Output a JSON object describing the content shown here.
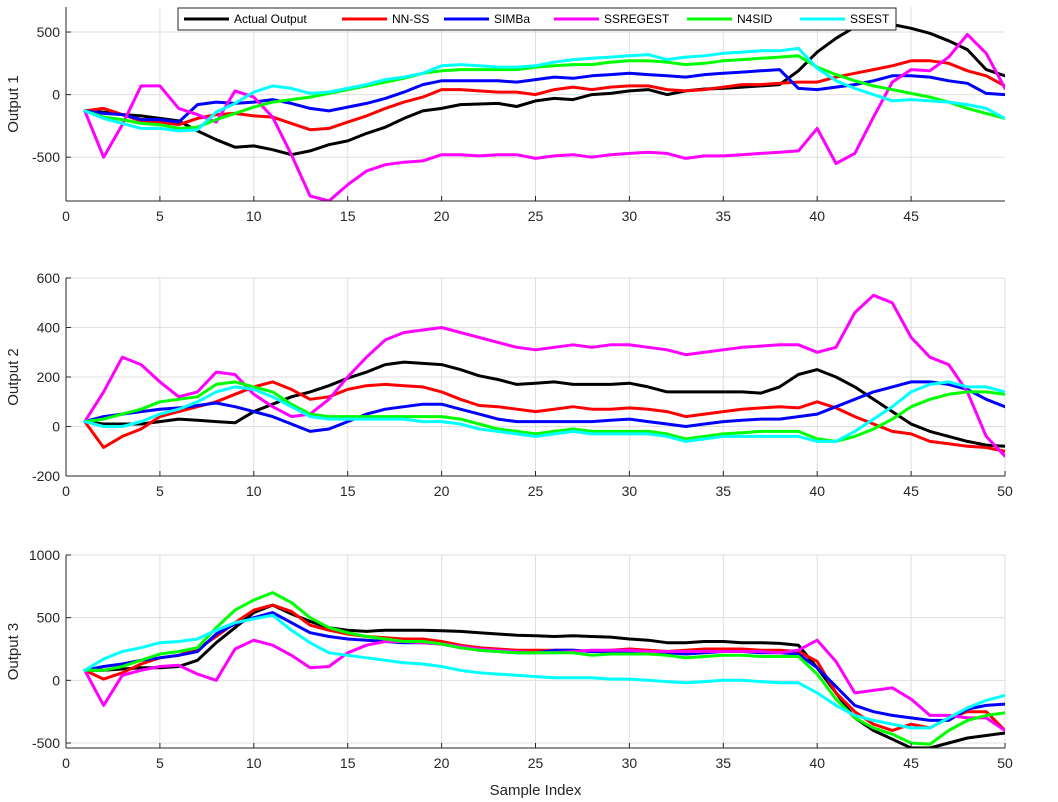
{
  "chart_data": [
    {
      "type": "line",
      "ylabel": "Output 1",
      "xlabel": "",
      "xlim": [
        0,
        50
      ],
      "ylim": [
        -850,
        700
      ],
      "xticks": [
        "0",
        "5",
        "10",
        "15",
        "20",
        "25",
        "30",
        "35",
        "40",
        "45"
      ],
      "yticks": [
        "500",
        "0",
        "-500"
      ],
      "grid": true,
      "legend_position": "top",
      "legend": [
        "Actual Output",
        "NN-SS",
        "SIMBa",
        "SSREGEST",
        "N4SID",
        "SSEST"
      ],
      "series": [
        {
          "name": "Actual Output",
          "color": "#000000",
          "values": [
            -130,
            -140,
            -160,
            -170,
            -190,
            -210,
            -290,
            -360,
            -420,
            -410,
            -440,
            -480,
            -450,
            -400,
            -370,
            -310,
            -260,
            -190,
            -130,
            -110,
            -80,
            -75,
            -70,
            -95,
            -50,
            -30,
            -40,
            0,
            10,
            30,
            40,
            0,
            30,
            45,
            50,
            60,
            70,
            80,
            190,
            340,
            450,
            540,
            580,
            560,
            530,
            490,
            430,
            360,
            200,
            150
          ]
        },
        {
          "name": "NN-SS",
          "color": "#ff0000",
          "values": [
            -130,
            -110,
            -160,
            -210,
            -220,
            -240,
            -190,
            -160,
            -150,
            -170,
            -180,
            -230,
            -280,
            -270,
            -220,
            -170,
            -110,
            -60,
            -20,
            40,
            40,
            30,
            20,
            20,
            0,
            40,
            60,
            40,
            60,
            70,
            70,
            40,
            30,
            40,
            60,
            80,
            80,
            90,
            100,
            100,
            140,
            170,
            200,
            230,
            270,
            270,
            250,
            190,
            150,
            70
          ]
        },
        {
          "name": "SIMBa",
          "color": "#0000ff",
          "values": [
            -130,
            -150,
            -160,
            -200,
            -200,
            -220,
            -80,
            -60,
            -70,
            -60,
            -40,
            -70,
            -110,
            -130,
            -100,
            -70,
            -30,
            20,
            80,
            110,
            110,
            110,
            110,
            100,
            120,
            140,
            130,
            150,
            160,
            170,
            160,
            150,
            140,
            160,
            170,
            180,
            190,
            200,
            50,
            40,
            60,
            80,
            110,
            150,
            150,
            140,
            110,
            90,
            10,
            0
          ]
        },
        {
          "name": "SSREGEST",
          "color": "#ff00ff",
          "values": [
            -130,
            -500,
            -240,
            70,
            70,
            -110,
            -160,
            -220,
            30,
            -20,
            -180,
            -480,
            -810,
            -850,
            -720,
            -610,
            -560,
            -540,
            -530,
            -480,
            -480,
            -490,
            -480,
            -480,
            -510,
            -490,
            -480,
            -500,
            -480,
            -470,
            -460,
            -470,
            -510,
            -490,
            -490,
            -480,
            -470,
            -460,
            -450,
            -270,
            -550,
            -470,
            -180,
            100,
            200,
            190,
            300,
            480,
            330,
            50
          ]
        },
        {
          "name": "N4SID",
          "color": "#00ff00",
          "values": [
            -130,
            -180,
            -200,
            -230,
            -240,
            -270,
            -260,
            -200,
            -150,
            -100,
            -60,
            -40,
            -20,
            10,
            40,
            70,
            100,
            130,
            170,
            190,
            200,
            200,
            200,
            200,
            220,
            230,
            240,
            240,
            260,
            270,
            270,
            260,
            240,
            250,
            270,
            280,
            290,
            300,
            310,
            220,
            160,
            110,
            70,
            40,
            10,
            -20,
            -60,
            -110,
            -150,
            -190
          ]
        },
        {
          "name": "SSEST",
          "color": "#00ffff",
          "values": [
            -130,
            -190,
            -230,
            -270,
            -270,
            -290,
            -280,
            -140,
            -70,
            20,
            70,
            50,
            10,
            20,
            50,
            80,
            120,
            140,
            170,
            230,
            240,
            230,
            220,
            220,
            230,
            260,
            280,
            290,
            300,
            310,
            320,
            280,
            300,
            310,
            330,
            340,
            350,
            350,
            370,
            210,
            110,
            50,
            0,
            -50,
            -40,
            -50,
            -60,
            -80,
            -110,
            -190
          ]
        }
      ]
    },
    {
      "type": "line",
      "ylabel": "Output 2",
      "xlabel": "",
      "xlim": [
        0,
        50
      ],
      "ylim": [
        -200,
        600
      ],
      "xticks": [
        "0",
        "5",
        "10",
        "15",
        "20",
        "25",
        "30",
        "35",
        "40",
        "45",
        "50"
      ],
      "yticks": [
        "600",
        "400",
        "200",
        "0",
        "-200"
      ],
      "grid": true,
      "series": [
        {
          "name": "Actual Output",
          "color": "#000000",
          "values": [
            20,
            10,
            10,
            10,
            20,
            30,
            25,
            20,
            15,
            60,
            90,
            120,
            140,
            165,
            195,
            220,
            250,
            260,
            255,
            250,
            230,
            205,
            190,
            170,
            175,
            180,
            170,
            170,
            170,
            175,
            160,
            140,
            140,
            140,
            140,
            140,
            135,
            160,
            210,
            230,
            200,
            160,
            110,
            60,
            10,
            -20,
            -40,
            -60,
            -75,
            -80
          ]
        },
        {
          "name": "NN-SS",
          "color": "#ff0000",
          "values": [
            20,
            -85,
            -40,
            -10,
            40,
            60,
            80,
            100,
            130,
            160,
            180,
            150,
            110,
            120,
            150,
            165,
            170,
            165,
            160,
            140,
            110,
            85,
            80,
            70,
            60,
            70,
            80,
            70,
            70,
            75,
            70,
            60,
            40,
            50,
            60,
            70,
            75,
            80,
            75,
            100,
            75,
            40,
            10,
            -20,
            -30,
            -60,
            -70,
            -80,
            -85,
            -100
          ]
        },
        {
          "name": "SIMBa",
          "color": "#0000ff",
          "values": [
            20,
            40,
            50,
            60,
            70,
            75,
            85,
            95,
            80,
            60,
            40,
            10,
            -20,
            -10,
            20,
            50,
            70,
            80,
            90,
            90,
            70,
            50,
            30,
            20,
            20,
            20,
            20,
            20,
            25,
            30,
            20,
            10,
            0,
            10,
            20,
            25,
            30,
            30,
            40,
            50,
            80,
            110,
            140,
            160,
            180,
            180,
            170,
            150,
            110,
            80
          ]
        },
        {
          "name": "SSREGEST",
          "color": "#ff00ff",
          "values": [
            20,
            140,
            280,
            250,
            180,
            120,
            140,
            220,
            210,
            130,
            80,
            40,
            50,
            110,
            200,
            280,
            350,
            380,
            390,
            400,
            380,
            360,
            340,
            320,
            310,
            320,
            330,
            320,
            330,
            330,
            320,
            310,
            290,
            300,
            310,
            320,
            325,
            330,
            330,
            300,
            320,
            460,
            530,
            500,
            360,
            280,
            250,
            140,
            -40,
            -120
          ]
        },
        {
          "name": "N4SID",
          "color": "#00ff00",
          "values": [
            20,
            30,
            50,
            70,
            100,
            110,
            120,
            170,
            180,
            160,
            140,
            90,
            50,
            40,
            40,
            40,
            40,
            40,
            40,
            40,
            30,
            10,
            -10,
            -20,
            -30,
            -20,
            -10,
            -20,
            -20,
            -20,
            -20,
            -30,
            -50,
            -40,
            -30,
            -25,
            -20,
            -20,
            -20,
            -50,
            -60,
            -40,
            -10,
            30,
            80,
            110,
            130,
            140,
            140,
            130
          ]
        },
        {
          "name": "SSEST",
          "color": "#00ffff",
          "values": [
            20,
            0,
            0,
            20,
            50,
            70,
            100,
            140,
            160,
            150,
            120,
            80,
            40,
            30,
            30,
            30,
            30,
            30,
            20,
            20,
            10,
            -10,
            -20,
            -30,
            -40,
            -30,
            -20,
            -30,
            -30,
            -30,
            -30,
            -40,
            -60,
            -50,
            -40,
            -40,
            -40,
            -40,
            -40,
            -60,
            -60,
            -20,
            30,
            80,
            140,
            170,
            180,
            160,
            160,
            140
          ]
        }
      ]
    },
    {
      "type": "line",
      "ylabel": "Output 3",
      "xlabel": "Sample Index",
      "xlim": [
        0,
        50
      ],
      "ylim": [
        -540,
        1000
      ],
      "xticks": [
        "0",
        "5",
        "10",
        "15",
        "20",
        "25",
        "30",
        "35",
        "40",
        "45",
        "50"
      ],
      "yticks": [
        "1000",
        "500",
        "0",
        "-500"
      ],
      "grid": true,
      "series": [
        {
          "name": "Actual Output",
          "color": "#000000",
          "values": [
            80,
            80,
            90,
            100,
            100,
            110,
            160,
            300,
            420,
            540,
            600,
            530,
            470,
            420,
            400,
            390,
            400,
            400,
            400,
            395,
            390,
            380,
            370,
            360,
            355,
            350,
            355,
            350,
            345,
            330,
            320,
            300,
            300,
            310,
            310,
            300,
            300,
            295,
            280,
            100,
            -100,
            -300,
            -400,
            -470,
            -540,
            -540,
            -500,
            -460,
            -440,
            -420
          ]
        },
        {
          "name": "NN-SS",
          "color": "#ff0000",
          "values": [
            80,
            10,
            60,
            130,
            180,
            200,
            250,
            350,
            460,
            560,
            600,
            550,
            440,
            400,
            370,
            350,
            340,
            330,
            330,
            310,
            280,
            260,
            250,
            240,
            240,
            240,
            240,
            230,
            240,
            250,
            240,
            230,
            240,
            250,
            250,
            250,
            240,
            240,
            230,
            150,
            -100,
            -250,
            -350,
            -400,
            -350,
            -380,
            -300,
            -250,
            -250,
            -400
          ]
        },
        {
          "name": "SIMBa",
          "color": "#0000ff",
          "values": [
            80,
            110,
            130,
            160,
            180,
            200,
            230,
            370,
            450,
            500,
            540,
            460,
            380,
            350,
            330,
            320,
            310,
            300,
            300,
            290,
            260,
            240,
            230,
            220,
            220,
            240,
            240,
            230,
            230,
            230,
            230,
            220,
            210,
            220,
            230,
            230,
            220,
            220,
            210,
            100,
            -50,
            -200,
            -250,
            -280,
            -300,
            -320,
            -320,
            -230,
            -200,
            -190
          ]
        },
        {
          "name": "SSREGEST",
          "color": "#ff00ff",
          "values": [
            80,
            -200,
            40,
            80,
            110,
            120,
            50,
            0,
            250,
            320,
            280,
            200,
            100,
            110,
            220,
            280,
            310,
            310,
            300,
            290,
            270,
            250,
            240,
            230,
            220,
            220,
            230,
            240,
            240,
            240,
            230,
            230,
            230,
            230,
            230,
            230,
            230,
            220,
            240,
            320,
            150,
            -100,
            -80,
            -60,
            -150,
            -280,
            -280,
            -300,
            -300,
            -400
          ]
        },
        {
          "name": "N4SID",
          "color": "#00ff00",
          "values": [
            80,
            80,
            110,
            160,
            210,
            230,
            260,
            420,
            560,
            640,
            700,
            620,
            500,
            420,
            380,
            350,
            330,
            310,
            310,
            290,
            260,
            240,
            230,
            220,
            220,
            220,
            220,
            200,
            210,
            210,
            210,
            200,
            180,
            190,
            200,
            200,
            190,
            190,
            190,
            50,
            -150,
            -300,
            -380,
            -430,
            -500,
            -510,
            -400,
            -320,
            -280,
            -260
          ]
        },
        {
          "name": "SSEST",
          "color": "#00ffff",
          "values": [
            80,
            170,
            230,
            260,
            300,
            310,
            330,
            400,
            460,
            490,
            520,
            400,
            300,
            220,
            200,
            180,
            160,
            140,
            130,
            110,
            80,
            60,
            50,
            40,
            30,
            20,
            20,
            20,
            10,
            10,
            0,
            -10,
            -20,
            -10,
            0,
            0,
            -10,
            -20,
            -20,
            -100,
            -200,
            -280,
            -320,
            -350,
            -380,
            -380,
            -300,
            -220,
            -160,
            -120
          ]
        }
      ]
    }
  ]
}
